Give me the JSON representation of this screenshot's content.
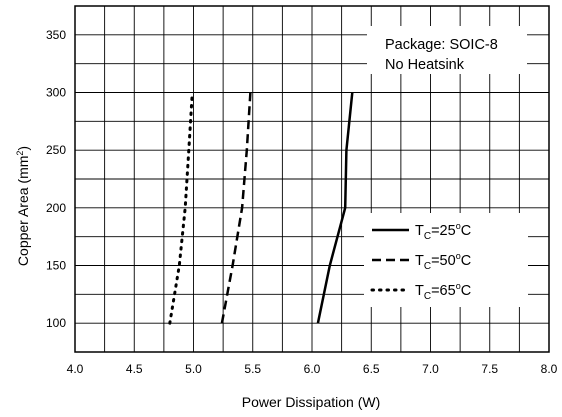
{
  "chart_data": {
    "type": "line",
    "xlabel": "Power Dissipation (W)",
    "ylabel_main": "Copper Area (mm",
    "ylabel_sup": "2",
    "ylabel_tail": ")",
    "xlim": [
      4.0,
      8.0
    ],
    "ylim": [
      75,
      375
    ],
    "x_ticks": [
      "4.0",
      "4.5",
      "5.0",
      "5.5",
      "6.0",
      "6.5",
      "7.0",
      "7.5",
      "8.0"
    ],
    "y_ticks": [
      "100",
      "150",
      "200",
      "250",
      "300",
      "350"
    ],
    "grid": true,
    "legend_position": "right-center",
    "annotation": [
      "Package: SOIC-8",
      "No Heatsink"
    ],
    "series": [
      {
        "name": "TC=25°C",
        "label_main": "T",
        "label_sub": "C",
        "label_rest": "=25",
        "label_deg": "o",
        "label_unit": "C",
        "style": "solid",
        "points": [
          [
            6.05,
            100
          ],
          [
            6.15,
            150
          ],
          [
            6.28,
            200
          ],
          [
            6.29,
            250
          ],
          [
            6.34,
            300
          ]
        ]
      },
      {
        "name": "TC=50°C",
        "label_main": "T",
        "label_sub": "C",
        "label_rest": "=50",
        "label_deg": "o",
        "label_unit": "C",
        "style": "dashed",
        "points": [
          [
            5.24,
            100
          ],
          [
            5.33,
            150
          ],
          [
            5.41,
            200
          ],
          [
            5.45,
            250
          ],
          [
            5.48,
            300
          ]
        ]
      },
      {
        "name": "TC=65°C",
        "label_main": "T",
        "label_sub": "C",
        "label_rest": "=65",
        "label_deg": "o",
        "label_unit": "C",
        "style": "dotted",
        "points": [
          [
            4.8,
            100
          ],
          [
            4.88,
            150
          ],
          [
            4.93,
            200
          ],
          [
            4.96,
            250
          ],
          [
            4.99,
            300
          ]
        ]
      }
    ]
  }
}
